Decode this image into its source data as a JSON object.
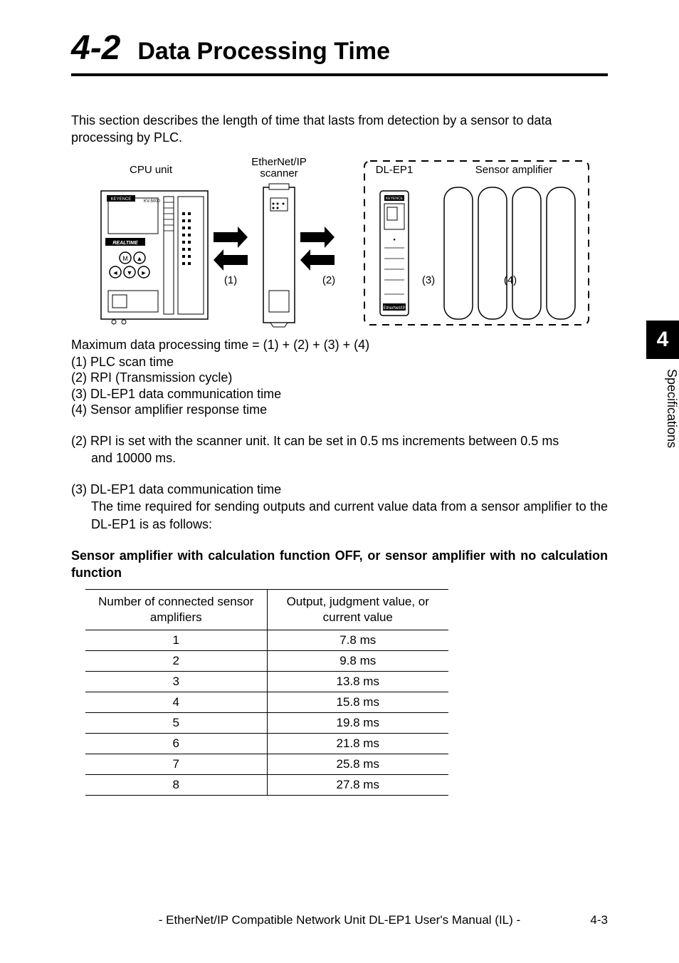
{
  "header": {
    "section_number": "4-2",
    "section_title": "Data Processing Time"
  },
  "intro": "This section describes the length of time that lasts from detection by a sensor to data processing by PLC.",
  "diagram": {
    "labels": {
      "cpu": "CPU unit",
      "scanner": "EtherNet/IP\nscanner",
      "dlep1": "DL-EP1",
      "sensor": "Sensor amplifier",
      "n1": "(1)",
      "n2": "(2)",
      "n3": "(3)",
      "n4": "(4)"
    }
  },
  "formula": "Maximum data processing time = (1) + (2) + (3) + (4)",
  "timing_items": [
    "(1) PLC scan time",
    "(2) RPI (Transmission cycle)",
    "(3) DL-EP1 data communication time",
    "(4) Sensor amplifier response time"
  ],
  "rpi_note": {
    "label": "(2) RPI is set with the scanner unit. It can be set in 0.5 ms increments between 0.5 ms",
    "cont": "and 10000 ms."
  },
  "comm_note": {
    "label": "(3) DL-EP1 data communication time",
    "body": "The time required for sending outputs and current value data from a sensor amplifier to the DL-EP1 is as follows:"
  },
  "table_heading": "Sensor amplifier with calculation function OFF, or sensor amplifier with no calculation function",
  "table": {
    "col1": "Number of connected sensor amplifiers",
    "col2": "Output, judgment value, or current value",
    "rows": [
      [
        "1",
        "7.8 ms"
      ],
      [
        "2",
        "9.8 ms"
      ],
      [
        "3",
        "13.8 ms"
      ],
      [
        "4",
        "15.8 ms"
      ],
      [
        "5",
        "19.8 ms"
      ],
      [
        "6",
        "21.8 ms"
      ],
      [
        "7",
        "25.8 ms"
      ],
      [
        "8",
        "27.8 ms"
      ]
    ]
  },
  "side_tab": {
    "number": "4",
    "label": "Specifications"
  },
  "footer": "- EtherNet/IP Compatible Network Unit DL-EP1 User's Manual (IL) -",
  "page_num": "4-3"
}
